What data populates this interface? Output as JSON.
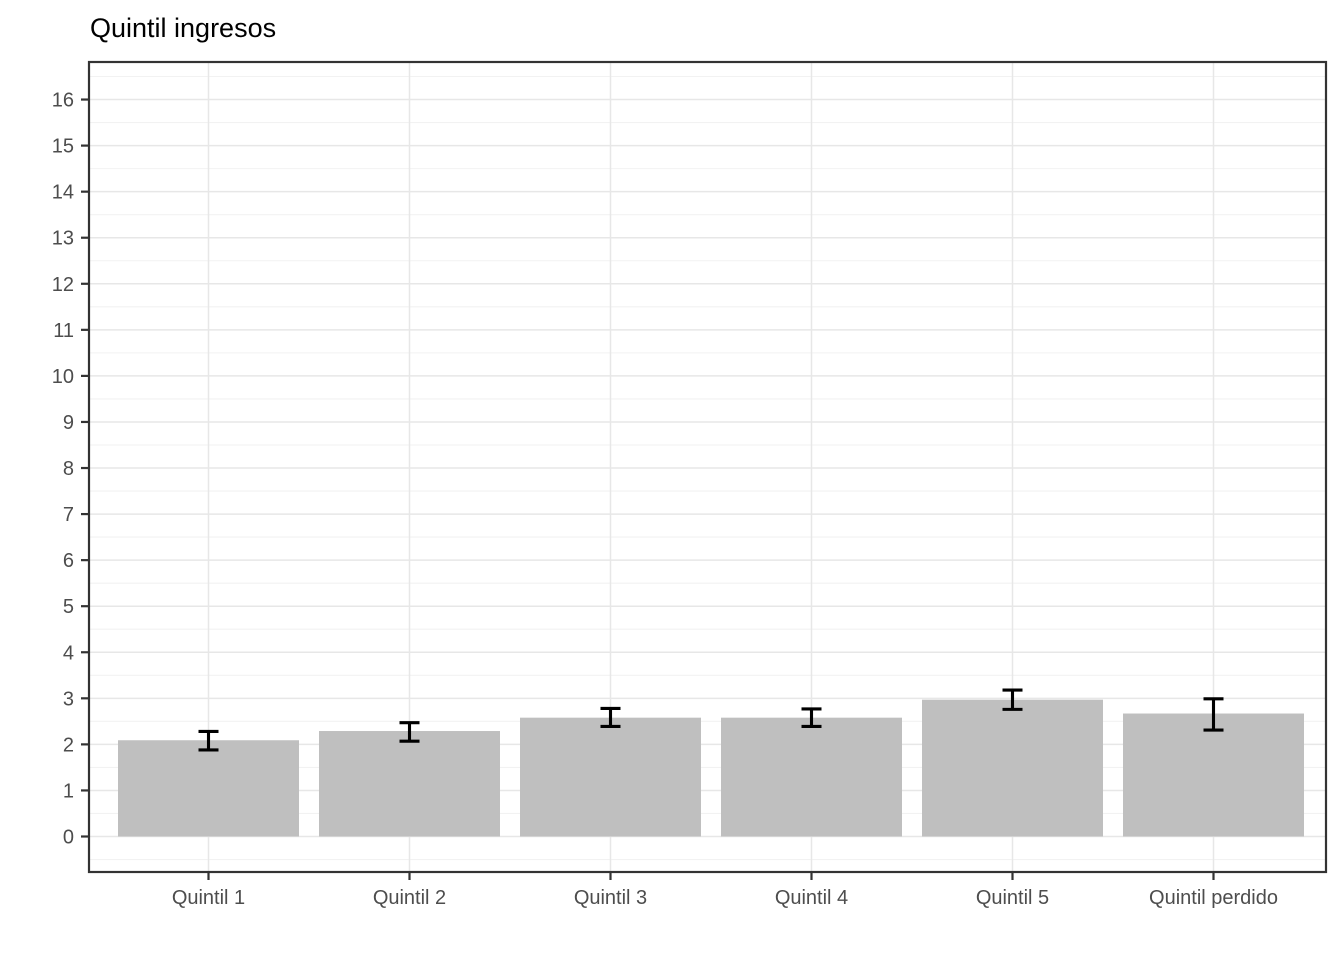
{
  "title": "Quintil ingresos",
  "chart_data": {
    "type": "bar",
    "title": "Quintil ingresos",
    "xlabel": "",
    "ylabel": "",
    "categories": [
      "Quintil 1",
      "Quintil 2",
      "Quintil 3",
      "Quintil 4",
      "Quintil 5",
      "Quintil perdido"
    ],
    "values": [
      2.09,
      2.29,
      2.58,
      2.58,
      2.97,
      2.67
    ],
    "error_low": [
      1.88,
      2.07,
      2.39,
      2.39,
      2.76,
      2.31
    ],
    "error_high": [
      2.28,
      2.47,
      2.78,
      2.77,
      3.18,
      2.99
    ],
    "error_bars": true,
    "ylim": [
      0,
      16
    ],
    "ytick_step": 1,
    "ytick_labels": [
      "0",
      "1",
      "2",
      "3",
      "4",
      "5",
      "6",
      "7",
      "8",
      "9",
      "10",
      "11",
      "12",
      "13",
      "14",
      "15",
      "16"
    ],
    "grid": {
      "major": true,
      "minor": true
    },
    "legend_position": "none",
    "colors": {
      "bar_fill": "#bfbfbf",
      "error_bar": "#000000",
      "panel_border": "#333333",
      "panel_background": "#ffffff",
      "grid_major": "#e7e7e7",
      "grid_minor": "#f2f2f2",
      "axis_text": "#4d4d4d",
      "tick_mark": "#333333",
      "title_text": "#000000",
      "figure_background": "#ffffff"
    }
  }
}
